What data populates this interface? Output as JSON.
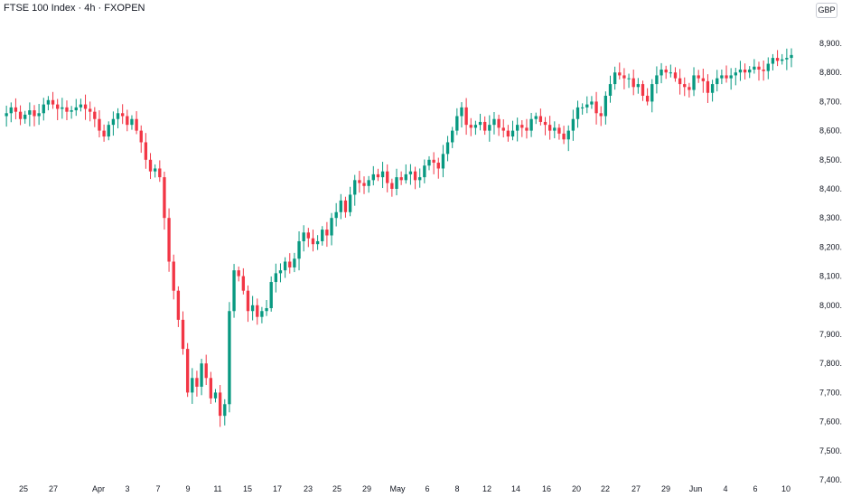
{
  "header": {
    "title": "FTSE 100 Index · 4h · FXOPEN",
    "currency": "GBP"
  },
  "colors": {
    "up": "#089981",
    "down": "#f23645",
    "axis_text": "#131722",
    "background": "#ffffff"
  },
  "chart_data": {
    "type": "candlestick",
    "grid": false,
    "ylim": [
      7400,
      8900
    ],
    "y_ticks": [
      "8,900.0",
      "8,800.0",
      "8,700.0",
      "8,600.0",
      "8,500.0",
      "8,400.0",
      "8,300.0",
      "8,200.0",
      "8,100.0",
      "8,000.0",
      "7,900.0",
      "7,800.0",
      "7,700.0",
      "7,600.0",
      "7,500.0",
      "7,400.0"
    ],
    "x_ticks": [
      "25",
      "27",
      "Apr",
      "3",
      "7",
      "9",
      "11",
      "15",
      "17",
      "23",
      "25",
      "29",
      "May",
      "6",
      "8",
      "12",
      "14",
      "16",
      "20",
      "22",
      "27",
      "29",
      "Jun",
      "4",
      "6",
      "10"
    ],
    "close_series": [
      8650,
      8660,
      8680,
      8665,
      8640,
      8655,
      8670,
      8650,
      8660,
      8690,
      8705,
      8690,
      8675,
      8680,
      8665,
      8670,
      8680,
      8690,
      8675,
      8665,
      8640,
      8600,
      8580,
      8620,
      8640,
      8660,
      8650,
      8620,
      8640,
      8600,
      8560,
      8500,
      8460,
      8470,
      8440,
      8300,
      8150,
      8050,
      7950,
      7850,
      7700,
      7750,
      7720,
      7800,
      7750,
      7680,
      7700,
      7620,
      7660,
      7980,
      8120,
      8100,
      8050,
      7980,
      8000,
      7960,
      7980,
      7990,
      8080,
      8110,
      8120,
      8150,
      8130,
      8160,
      8220,
      8250,
      8230,
      8210,
      8220,
      8260,
      8240,
      8300,
      8320,
      8360,
      8320,
      8380,
      8430,
      8420,
      8410,
      8430,
      8450,
      8440,
      8460,
      8420,
      8400,
      8440,
      8430,
      8450,
      8460,
      8430,
      8440,
      8480,
      8500,
      8490,
      8470,
      8520,
      8560,
      8600,
      8650,
      8680,
      8620,
      8610,
      8620,
      8630,
      8600,
      8620,
      8640,
      8610,
      8600,
      8580,
      8600,
      8620,
      8610,
      8600,
      8640,
      8650,
      8630,
      8620,
      8600,
      8610,
      8590,
      8570,
      8600,
      8640,
      8680,
      8680,
      8690,
      8700,
      8660,
      8650,
      8720,
      8760,
      8800,
      8790,
      8780,
      8780,
      8750,
      8760,
      8720,
      8700,
      8760,
      8790,
      8810,
      8800,
      8800,
      8780,
      8760,
      8750,
      8740,
      8790,
      8780,
      8770,
      8730,
      8760,
      8780,
      8790,
      8780,
      8790,
      8800,
      8810,
      8800,
      8810,
      8820,
      8810,
      8805,
      8830,
      8850,
      8840,
      8845,
      8850,
      8860
    ]
  }
}
